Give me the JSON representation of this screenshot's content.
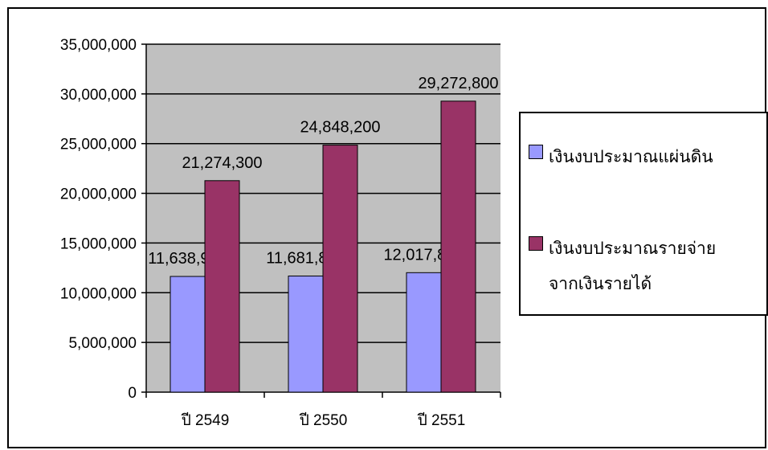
{
  "chart_data": {
    "type": "bar",
    "title": "",
    "xlabel": "",
    "ylabel": "",
    "categories": [
      "ปี 2549",
      "ปี 2550",
      "ปี 2551"
    ],
    "series": [
      {
        "name": "เงินงบประมาณแผ่นดิน",
        "values": [
          11638900,
          11681800,
          12017800
        ],
        "value_labels": [
          "11,638,900",
          "11,681,800",
          "12,017,800"
        ],
        "color": "#9999FF"
      },
      {
        "name": "เงินงบประมาณรายจ่ายจากเงินรายได้",
        "values": [
          21274300,
          24848200,
          29272800
        ],
        "value_labels": [
          "21,274,300",
          "24,848,200",
          "29,272,800"
        ],
        "color": "#993366"
      }
    ],
    "ylim": [
      0,
      35000000
    ],
    "yticks": [
      0,
      5000000,
      10000000,
      15000000,
      20000000,
      25000000,
      30000000,
      35000000
    ],
    "ytick_labels": [
      "0",
      "5,000,000",
      "10,000,000",
      "15,000,000",
      "20,000,000",
      "25,000,000",
      "30,000,000",
      "35,000,000"
    ],
    "grid": true,
    "plot_background": "#C0C0C0",
    "legend_position": "right",
    "legend": {
      "items": [
        {
          "label": "เงินงบประมาณแผ่นดิน",
          "color": "#9999FF"
        },
        {
          "label": "เงินงบประมาณรายจ่าย\nจากเงินรายได้",
          "color": "#993366"
        }
      ]
    }
  }
}
